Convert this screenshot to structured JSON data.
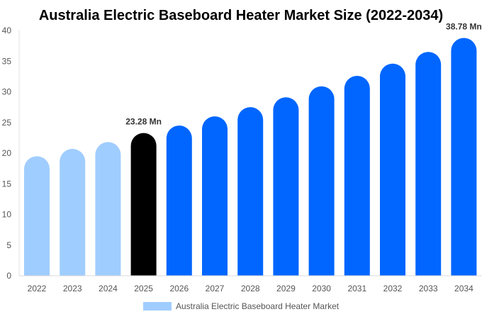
{
  "chart_data": {
    "type": "bar",
    "title": "Australia Electric Baseboard Heater Market Size (2022-2034)",
    "categories": [
      "2022",
      "2023",
      "2024",
      "2025",
      "2026",
      "2027",
      "2028",
      "2029",
      "2030",
      "2031",
      "2032",
      "2033",
      "2034"
    ],
    "series": [
      {
        "name": "Australia Electric Baseboard Heater Market",
        "values": [
          19.5,
          20.7,
          21.8,
          23.28,
          24.5,
          26.0,
          27.5,
          29.1,
          30.9,
          32.6,
          34.6,
          36.5,
          38.78
        ]
      }
    ],
    "data_labels": {
      "3": "23.28 Mn",
      "12": "38.78 Mn"
    },
    "ylim": [
      0,
      40
    ],
    "yticks": [
      0,
      5,
      10,
      15,
      20,
      25,
      30,
      35,
      40
    ],
    "grid": false,
    "legend_position": "bottom",
    "colors": {
      "historical": "#a0cdff",
      "base_year": "#000000",
      "forecast": "#0066ff"
    }
  }
}
